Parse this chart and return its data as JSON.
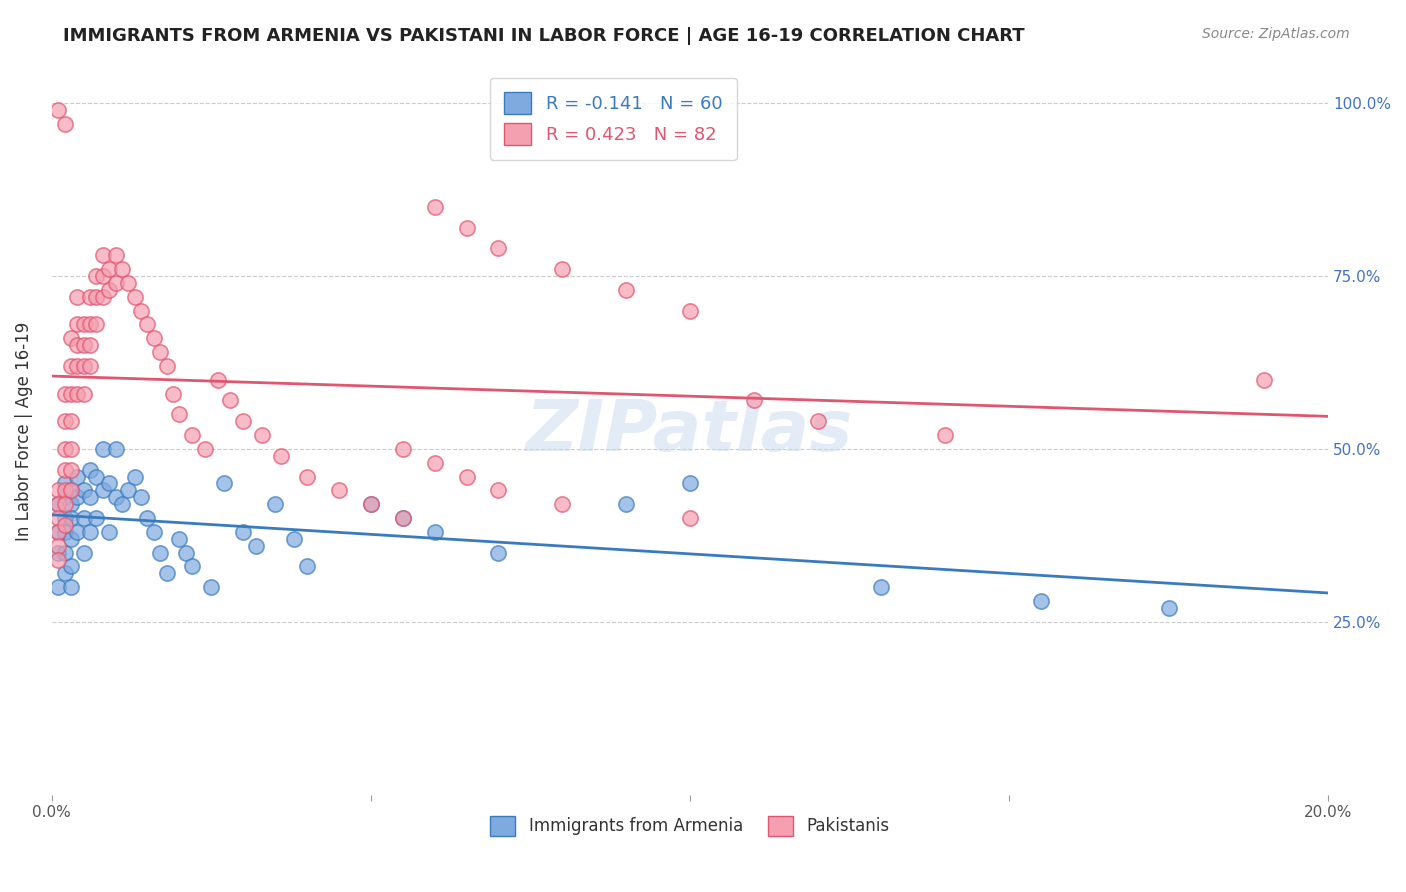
{
  "title": "IMMIGRANTS FROM ARMENIA VS PAKISTANI IN LABOR FORCE | AGE 16-19 CORRELATION CHART",
  "source": "Source: ZipAtlas.com",
  "ylabel": "In Labor Force | Age 16-19",
  "xlabel_armenia": "Immigrants from Armenia",
  "xlabel_pakistani": "Pakistanis",
  "xmin": 0.0,
  "xmax": 0.2,
  "ymin": 0.0,
  "ymax": 1.05,
  "yticks": [
    0.25,
    0.5,
    0.75,
    1.0
  ],
  "ytick_labels": [
    "25.0%",
    "50.0%",
    "75.0%",
    "100.0%"
  ],
  "xticks": [
    0.0,
    0.05,
    0.1,
    0.15,
    0.2
  ],
  "xtick_labels": [
    "0.0%",
    "",
    "",
    "",
    "20.0%"
  ],
  "armenia_R": -0.141,
  "armenia_N": 60,
  "pakistan_R": 0.423,
  "pakistan_N": 82,
  "armenia_color": "#7faadf",
  "pakistan_color": "#f4a0b0",
  "armenia_line_color": "#3a7bbf",
  "pakistan_line_color": "#e05570",
  "watermark": "ZIPatlas",
  "armenia_x": [
    0.001,
    0.001,
    0.001,
    0.001,
    0.002,
    0.002,
    0.002,
    0.002,
    0.002,
    0.002,
    0.003,
    0.003,
    0.003,
    0.003,
    0.003,
    0.003,
    0.004,
    0.004,
    0.004,
    0.005,
    0.005,
    0.005,
    0.006,
    0.006,
    0.006,
    0.007,
    0.007,
    0.008,
    0.008,
    0.009,
    0.009,
    0.01,
    0.01,
    0.011,
    0.012,
    0.013,
    0.014,
    0.015,
    0.016,
    0.017,
    0.018,
    0.02,
    0.021,
    0.022,
    0.025,
    0.027,
    0.03,
    0.032,
    0.035,
    0.038,
    0.04,
    0.05,
    0.055,
    0.06,
    0.07,
    0.09,
    0.1,
    0.13,
    0.155,
    0.175
  ],
  "armenia_y": [
    0.42,
    0.38,
    0.35,
    0.3,
    0.45,
    0.43,
    0.4,
    0.38,
    0.35,
    0.32,
    0.44,
    0.42,
    0.4,
    0.37,
    0.33,
    0.3,
    0.46,
    0.43,
    0.38,
    0.44,
    0.4,
    0.35,
    0.47,
    0.43,
    0.38,
    0.46,
    0.4,
    0.5,
    0.44,
    0.45,
    0.38,
    0.5,
    0.43,
    0.42,
    0.44,
    0.46,
    0.43,
    0.4,
    0.38,
    0.35,
    0.32,
    0.37,
    0.35,
    0.33,
    0.3,
    0.45,
    0.38,
    0.36,
    0.42,
    0.37,
    0.33,
    0.42,
    0.4,
    0.38,
    0.35,
    0.42,
    0.45,
    0.3,
    0.28,
    0.27
  ],
  "pakistan_x": [
    0.001,
    0.001,
    0.001,
    0.001,
    0.001,
    0.001,
    0.002,
    0.002,
    0.002,
    0.002,
    0.002,
    0.002,
    0.002,
    0.003,
    0.003,
    0.003,
    0.003,
    0.003,
    0.003,
    0.003,
    0.004,
    0.004,
    0.004,
    0.004,
    0.004,
    0.005,
    0.005,
    0.005,
    0.005,
    0.006,
    0.006,
    0.006,
    0.006,
    0.007,
    0.007,
    0.007,
    0.008,
    0.008,
    0.008,
    0.009,
    0.009,
    0.01,
    0.01,
    0.011,
    0.012,
    0.013,
    0.014,
    0.015,
    0.016,
    0.017,
    0.018,
    0.019,
    0.02,
    0.022,
    0.024,
    0.026,
    0.028,
    0.03,
    0.033,
    0.036,
    0.04,
    0.045,
    0.05,
    0.055,
    0.06,
    0.065,
    0.07,
    0.08,
    0.09,
    0.1,
    0.055,
    0.06,
    0.065,
    0.07,
    0.08,
    0.1,
    0.11,
    0.12,
    0.14,
    0.19,
    0.001,
    0.002
  ],
  "pakistan_y": [
    0.44,
    0.42,
    0.4,
    0.38,
    0.36,
    0.34,
    0.58,
    0.54,
    0.5,
    0.47,
    0.44,
    0.42,
    0.39,
    0.66,
    0.62,
    0.58,
    0.54,
    0.5,
    0.47,
    0.44,
    0.72,
    0.68,
    0.65,
    0.62,
    0.58,
    0.68,
    0.65,
    0.62,
    0.58,
    0.72,
    0.68,
    0.65,
    0.62,
    0.75,
    0.72,
    0.68,
    0.78,
    0.75,
    0.72,
    0.76,
    0.73,
    0.78,
    0.74,
    0.76,
    0.74,
    0.72,
    0.7,
    0.68,
    0.66,
    0.64,
    0.62,
    0.58,
    0.55,
    0.52,
    0.5,
    0.6,
    0.57,
    0.54,
    0.52,
    0.49,
    0.46,
    0.44,
    0.42,
    0.4,
    0.85,
    0.82,
    0.79,
    0.76,
    0.73,
    0.7,
    0.5,
    0.48,
    0.46,
    0.44,
    0.42,
    0.4,
    0.57,
    0.54,
    0.52,
    0.6,
    0.99,
    0.97
  ]
}
